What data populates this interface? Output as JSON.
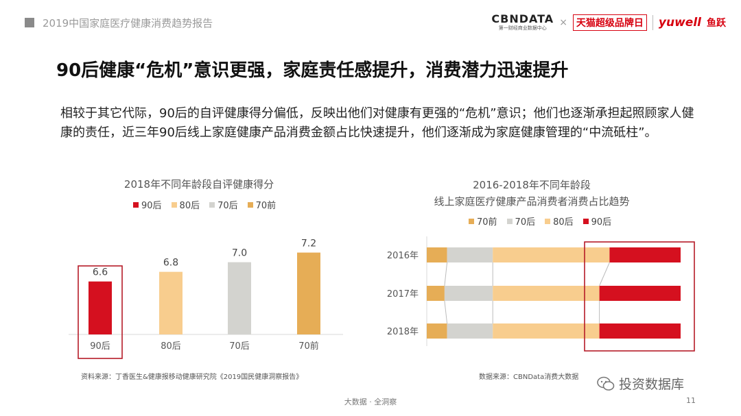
{
  "header": {
    "report_title": "2019中国家庭医疗健康消费趋势报告",
    "logos": {
      "cbn": "CBNDATA",
      "cbn_sub": "第一财经商业数据中心",
      "x": "×",
      "tmall": "天猫超级品牌日",
      "yuwell": "yuwell",
      "yuyue": "鱼跃"
    }
  },
  "headline": "90后健康“危机”意识更强，家庭责任感提升，消费潜力迅速提升",
  "summary": "相较于其它代际，90后的自评健康得分偏低，反映出他们对健康有更强的“危机”意识；他们也逐渐承担起照顾家人健康的责任，近三年90后线上家庭健康产品消费金额占比快速提升，他们逐渐成为家庭健康管理的“中流砥柱”。",
  "left_chart": {
    "title": "2018年不同年龄段自评健康得分",
    "source": "资料来源：丁香医生&健康报移动健康研究院《2019国民健康洞察报告》"
  },
  "right_chart": {
    "title_line1": "2016-2018年不同年龄段",
    "title_line2": "线上家庭医疗健康产品消费者消费占比趋势",
    "source": "数据来源：CBNData消费大数据"
  },
  "footer": {
    "center": "大数据 · 全洞察",
    "page": "11",
    "wechat": "投资数据库"
  },
  "colors": {
    "90后": "#d5101f",
    "80后": "#f8cd8e",
    "70后": "#d3d3cf",
    "70前": "#e6ad56"
  },
  "chart_data": [
    {
      "type": "bar",
      "title": "2018年不同年龄段自评健康得分",
      "categories": [
        "90后",
        "80后",
        "70后",
        "70前"
      ],
      "values": [
        6.6,
        6.8,
        7.0,
        7.2
      ],
      "legend": [
        "90后",
        "80后",
        "70后",
        "70前"
      ],
      "legend_position": "top",
      "ylim": [
        5.5,
        7.35
      ],
      "highlight": "90后",
      "grid": false
    },
    {
      "type": "bar",
      "orientation": "horizontal-stacked-100",
      "title": "2016-2018年不同年龄段 线上家庭医疗健康产品消费者消费占比趋势",
      "categories": [
        "2016年",
        "2017年",
        "2018年"
      ],
      "series": [
        {
          "name": "70前",
          "values": [
            8,
            7,
            8
          ]
        },
        {
          "name": "70后",
          "values": [
            18,
            19,
            18
          ]
        },
        {
          "name": "80后",
          "values": [
            46,
            42,
            42
          ]
        },
        {
          "name": "90后",
          "values": [
            28,
            32,
            32
          ]
        }
      ],
      "legend_position": "top",
      "highlight": "90后",
      "grid": false
    }
  ]
}
